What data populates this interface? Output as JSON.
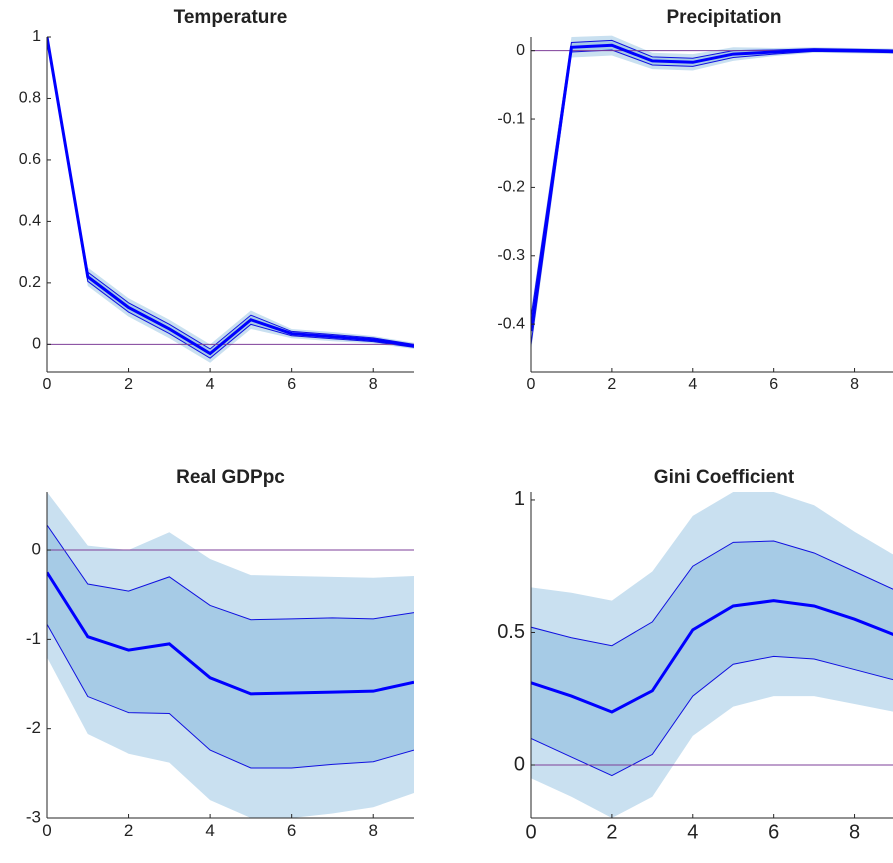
{
  "chart_data": [
    {
      "type": "line",
      "title": "Temperature",
      "x": [
        0,
        1,
        2,
        3,
        4,
        5,
        6,
        7,
        8,
        9
      ],
      "xlim": [
        0,
        9
      ],
      "xticks": [
        0,
        2,
        4,
        6,
        8
      ],
      "ylim": [
        -0.09,
        1
      ],
      "yticks": [
        0,
        0.2,
        0.4,
        0.6,
        0.8,
        1
      ],
      "hline": 0,
      "hline_color": "#7e3f98",
      "bands": [
        {
          "color": "#c9e0f0",
          "lower": [
            0.98,
            0.19,
            0.09,
            0.02,
            -0.06,
            0.05,
            0.02,
            0.01,
            0.003,
            -0.015
          ],
          "upper": [
            1,
            0.25,
            0.15,
            0.08,
            0,
            0.11,
            0.05,
            0.04,
            0.027,
            0.005
          ]
        },
        {
          "color": "#a6cbe6",
          "line_color": "#1010e0",
          "lower": [
            0.99,
            0.205,
            0.105,
            0.035,
            -0.045,
            0.065,
            0.028,
            0.018,
            0.009,
            -0.01
          ],
          "upper": [
            1,
            0.235,
            0.135,
            0.065,
            -0.015,
            0.095,
            0.042,
            0.032,
            0.021,
            0
          ]
        }
      ],
      "series": [
        {
          "color": "#0000ff",
          "values": [
            1,
            0.22,
            0.12,
            0.05,
            -0.03,
            0.08,
            0.035,
            0.025,
            0.015,
            -0.005
          ]
        }
      ]
    },
    {
      "type": "line",
      "title": "Precipitation",
      "x": [
        0,
        1,
        2,
        3,
        4,
        5,
        6,
        7,
        8,
        9
      ],
      "xlim": [
        0,
        9
      ],
      "xticks": [
        0,
        2,
        4,
        6,
        8
      ],
      "ylim": [
        -0.47,
        0.02
      ],
      "yticks": [
        -0.4,
        -0.3,
        -0.2,
        -0.1,
        0
      ],
      "hline": 0,
      "hline_color": "#7e3f98",
      "bands": [
        {
          "color": "#c9e0f0",
          "lower": [
            -0.44,
            -0.01,
            -0.007,
            -0.027,
            -0.029,
            -0.015,
            -0.008,
            -0.003,
            -0.004,
            -0.005
          ],
          "upper": [
            -0.38,
            0.02,
            0.022,
            -0.003,
            -0.005,
            0.005,
            0.004,
            0.005,
            0.004,
            0.003
          ]
        },
        {
          "color": "#a6cbe6",
          "line_color": "#1010e0",
          "lower": [
            -0.43,
            -0.002,
            0.001,
            -0.021,
            -0.023,
            -0.01,
            -0.005,
            -0.001,
            -0.002,
            -0.003
          ],
          "upper": [
            -0.39,
            0.012,
            0.015,
            -0.009,
            -0.011,
            0,
            0.001,
            0.003,
            0.002,
            0.001
          ]
        }
      ],
      "series": [
        {
          "color": "#0000ff",
          "values": [
            -0.41,
            0.005,
            0.008,
            -0.015,
            -0.017,
            -0.005,
            -0.002,
            0.001,
            0,
            -0.001
          ]
        }
      ]
    },
    {
      "type": "line",
      "title": "Real GDPpc",
      "x": [
        0,
        1,
        2,
        3,
        4,
        5,
        6,
        7,
        8,
        9
      ],
      "xlim": [
        0,
        9
      ],
      "xticks": [
        0,
        2,
        4,
        6,
        8
      ],
      "ylim": [
        -3,
        0.65
      ],
      "yticks": [
        -3,
        -2,
        -1,
        0
      ],
      "hline": 0,
      "hline_color": "#7e3f98",
      "bands": [
        {
          "color": "#c9e0f0",
          "lower": [
            -1.2,
            -2.06,
            -2.28,
            -2.38,
            -2.8,
            -3,
            -3,
            -2.95,
            -2.88,
            -2.72
          ],
          "upper": [
            0.65,
            0.05,
            0,
            0.2,
            -0.1,
            -0.28,
            -0.29,
            -0.3,
            -0.31,
            -0.29
          ]
        },
        {
          "color": "#a6cbe6",
          "line_color": "#1010e0",
          "lower": [
            -0.83,
            -1.64,
            -1.82,
            -1.83,
            -2.24,
            -2.44,
            -2.44,
            -2.4,
            -2.37,
            -2.24
          ],
          "upper": [
            0.28,
            -0.38,
            -0.46,
            -0.3,
            -0.62,
            -0.78,
            -0.77,
            -0.76,
            -0.77,
            -0.7
          ]
        }
      ],
      "series": [
        {
          "color": "#0000ff",
          "values": [
            -0.25,
            -0.97,
            -1.12,
            -1.05,
            -1.43,
            -1.61,
            -1.6,
            -1.59,
            -1.58,
            -1.48
          ]
        }
      ]
    },
    {
      "type": "line",
      "title": "Gini Coefficient",
      "x": [
        0,
        1,
        2,
        3,
        4,
        5,
        6,
        7,
        8,
        9
      ],
      "xlim": [
        0,
        9
      ],
      "xticks": [
        0,
        2,
        4,
        6,
        8
      ],
      "ylim": [
        -0.2,
        1.03
      ],
      "yticks": [
        0,
        0.5,
        1
      ],
      "hline": 0,
      "hline_color": "#7e3f98",
      "bands": [
        {
          "color": "#c9e0f0",
          "lower": [
            -0.05,
            -0.12,
            -0.2,
            -0.12,
            0.11,
            0.22,
            0.26,
            0.26,
            0.23,
            0.2
          ],
          "upper": [
            0.67,
            0.65,
            0.62,
            0.73,
            0.94,
            1.03,
            1.03,
            0.98,
            0.88,
            0.79
          ]
        },
        {
          "color": "#a6cbe6",
          "line_color": "#1010e0",
          "lower": [
            0.1,
            0.03,
            -0.04,
            0.04,
            0.26,
            0.38,
            0.41,
            0.4,
            0.36,
            0.32
          ],
          "upper": [
            0.52,
            0.48,
            0.45,
            0.54,
            0.75,
            0.84,
            0.845,
            0.8,
            0.73,
            0.66
          ]
        }
      ],
      "series": [
        {
          "color": "#0000ff",
          "values": [
            0.31,
            0.26,
            0.2,
            0.28,
            0.51,
            0.6,
            0.62,
            0.6,
            0.55,
            0.49
          ]
        }
      ]
    }
  ]
}
